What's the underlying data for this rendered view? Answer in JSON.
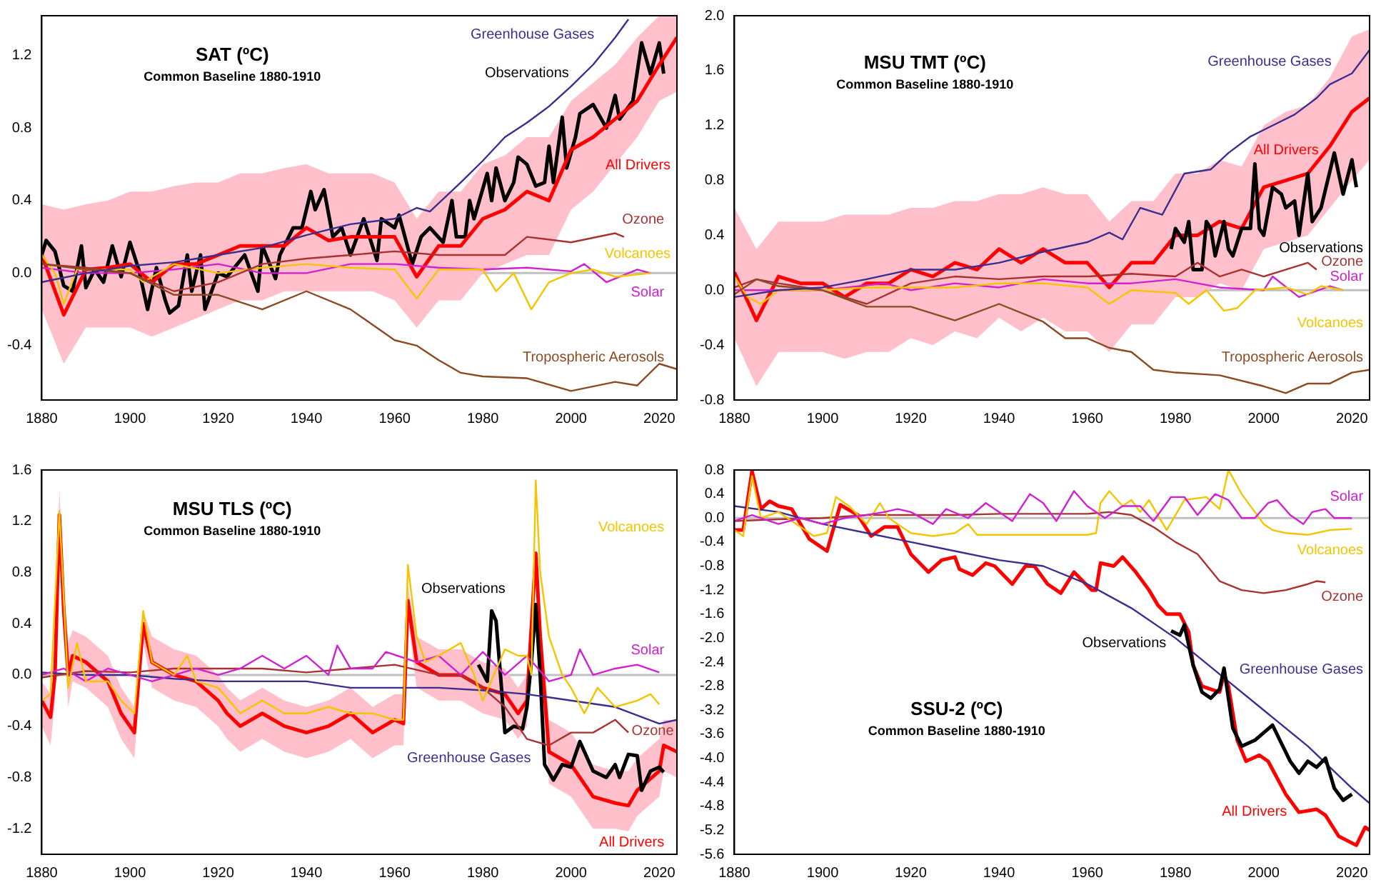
{
  "chart_data": [
    {
      "type": "line",
      "title": "SAT (ºC)",
      "subtitle": "Common Baseline 1880-1910",
      "xlim": [
        1880,
        2024
      ],
      "xticks": [
        1880,
        1900,
        1920,
        1940,
        1960,
        1980,
        2000,
        2020
      ],
      "ylim": [
        -0.7,
        1.42
      ],
      "yticks": [
        -0.4,
        {
          "value": 0,
          "label": "0.0"
        },
        0.4,
        0.8,
        1.2
      ],
      "grid": false,
      "legend": false,
      "marker": "none",
      "ref_lines": [
        {
          "axis": "y",
          "value": 0,
          "color": "#c0c0c0"
        }
      ],
      "series": [
        {
          "name": "Greenhouse Gases",
          "color": "#3b2e8f",
          "x": [
            1880,
            1890,
            1900,
            1910,
            1920,
            1930,
            1940,
            1950,
            1960,
            1965,
            1968,
            1975,
            1980,
            1985,
            1990,
            1995,
            2000,
            2005,
            2010,
            2013
          ],
          "values": [
            -0.05,
            0,
            0.04,
            0.06,
            0.1,
            0.14,
            0.21,
            0.27,
            0.3,
            0.36,
            0.34,
            0.5,
            0.62,
            0.75,
            0.83,
            0.92,
            1.03,
            1.15,
            1.3,
            1.4
          ]
        },
        {
          "name": "Tropospheric Aerosols",
          "color": "#8b4a22",
          "x": [
            1880,
            1890,
            1900,
            1910,
            1920,
            1930,
            1940,
            1950,
            1960,
            1965,
            1970,
            1975,
            1980,
            1990,
            2000,
            2010,
            2015,
            2020,
            2024
          ],
          "values": [
            0.05,
            0.02,
            0,
            -0.12,
            -0.12,
            -0.2,
            -0.1,
            -0.2,
            -0.37,
            -0.4,
            -0.48,
            -0.55,
            -0.57,
            -0.58,
            -0.65,
            -0.6,
            -0.62,
            -0.5,
            -0.53
          ]
        },
        {
          "name": "Ozone",
          "color": "#a83232",
          "x": [
            1880,
            1890,
            1900,
            1910,
            1920,
            1930,
            1940,
            1950,
            1960,
            1970,
            1980,
            1985,
            1990,
            2000,
            2010,
            2012
          ],
          "values": [
            0.05,
            0.03,
            0,
            -0.1,
            -0.05,
            0.05,
            0.08,
            0.1,
            0.12,
            0.1,
            0.1,
            0.1,
            0.2,
            0.17,
            0.22,
            0.2
          ]
        },
        {
          "name": "Volcanoes",
          "color": "#f5c400",
          "x": [
            1880,
            1883,
            1885,
            1888,
            1900,
            1903,
            1910,
            1920,
            1930,
            1940,
            1950,
            1960,
            1965,
            1970,
            1980,
            1983,
            1987,
            1991,
            1995,
            2000,
            2005,
            2010,
            2018
          ],
          "values": [
            0.1,
            0,
            -0.17,
            0.02,
            0.02,
            -0.05,
            0.05,
            0,
            0.03,
            0.05,
            0.03,
            0.02,
            -0.14,
            0.02,
            0.02,
            -0.1,
            0,
            -0.2,
            -0.05,
            0,
            0.02,
            -0.02,
            0
          ]
        },
        {
          "name": "Solar",
          "color": "#d020d0",
          "x": [
            1880,
            1890,
            1900,
            1910,
            1920,
            1930,
            1940,
            1950,
            1960,
            1970,
            1980,
            1990,
            2000,
            2003,
            2008,
            2015,
            2018
          ],
          "values": [
            0.03,
            0,
            0,
            0.02,
            0.05,
            0,
            0,
            0.05,
            0.05,
            0.03,
            0.02,
            0.03,
            0.01,
            0.05,
            -0.05,
            0.02,
            0
          ]
        },
        {
          "name": "All Drivers",
          "color": "#ff0000",
          "x": [
            1880,
            1885,
            1890,
            1895,
            1900,
            1905,
            1910,
            1915,
            1920,
            1925,
            1930,
            1935,
            1940,
            1945,
            1950,
            1955,
            1960,
            1965,
            1970,
            1975,
            1980,
            1985,
            1990,
            1995,
            2000,
            2005,
            2010,
            2015,
            2020,
            2024
          ],
          "values": [
            0.1,
            -0.23,
            0.02,
            0.03,
            0.05,
            -0.05,
            0.05,
            0.05,
            0.1,
            0.15,
            0.15,
            0.15,
            0.25,
            0.18,
            0.2,
            0.2,
            0.2,
            -0.02,
            0.15,
            0.15,
            0.3,
            0.35,
            0.45,
            0.4,
            0.68,
            0.75,
            0.85,
            0.95,
            1.15,
            1.3
          ],
          "upper": [
            0.38,
            0.35,
            0.38,
            0.4,
            0.45,
            0.45,
            0.48,
            0.5,
            0.5,
            0.55,
            0.55,
            0.58,
            0.6,
            0.55,
            0.55,
            0.55,
            0.5,
            0.3,
            0.45,
            0.45,
            0.6,
            0.65,
            0.75,
            0.75,
            0.95,
            1.05,
            1.15,
            1.3,
            1.42,
            1.42
          ],
          "lower": [
            -0.2,
            -0.5,
            -0.3,
            -0.3,
            -0.3,
            -0.35,
            -0.3,
            -0.25,
            -0.2,
            -0.15,
            -0.15,
            -0.1,
            -0.1,
            -0.1,
            -0.1,
            -0.1,
            -0.15,
            -0.3,
            -0.15,
            -0.15,
            0,
            0.05,
            0.1,
            0.1,
            0.35,
            0.45,
            0.6,
            0.75,
            0.95,
            1.0
          ]
        },
        {
          "name": "Observations",
          "color": "#000000",
          "x": [
            1880,
            1881,
            1883,
            1885,
            1887,
            1889,
            1890,
            1892,
            1894,
            1896,
            1898,
            1900,
            1902,
            1904,
            1906,
            1908,
            1909,
            1911,
            1913,
            1914,
            1916,
            1917,
            1920,
            1922,
            1926,
            1929,
            1930,
            1933,
            1934,
            1937,
            1939,
            1941,
            1942,
            1944,
            1946,
            1948,
            1950,
            1953,
            1956,
            1957,
            1960,
            1961,
            1964,
            1966,
            1968,
            1971,
            1973,
            1974,
            1976,
            1977,
            1978,
            1981,
            1982,
            1983,
            1985,
            1987,
            1988,
            1990,
            1992,
            1994,
            1995,
            1996,
            1998,
            1999,
            2001,
            2002,
            2005,
            2008,
            2010,
            2011,
            2014,
            2016,
            2018,
            2020,
            2021
          ],
          "values": [
            0.1,
            0.18,
            0.12,
            -0.07,
            -0.1,
            0.15,
            -0.08,
            0.02,
            -0.05,
            0.15,
            -0.02,
            0.17,
            0.02,
            -0.2,
            0.03,
            -0.15,
            -0.22,
            -0.18,
            0.1,
            -0.1,
            0.1,
            -0.2,
            0,
            -0.02,
            0.1,
            -0.1,
            0.15,
            -0.03,
            0.1,
            0.25,
            0.25,
            0.45,
            0.35,
            0.46,
            0.2,
            0.25,
            0.1,
            0.3,
            0.07,
            0.3,
            0.25,
            0.32,
            0.05,
            0.2,
            0.25,
            0.17,
            0.4,
            0.2,
            0.2,
            0.4,
            0.3,
            0.55,
            0.4,
            0.58,
            0.4,
            0.5,
            0.64,
            0.6,
            0.48,
            0.5,
            0.7,
            0.5,
            0.86,
            0.58,
            0.75,
            0.88,
            0.93,
            0.8,
            0.98,
            0.85,
            0.95,
            1.27,
            1.1,
            1.27,
            1.1
          ]
        }
      ]
    },
    {
      "type": "line",
      "title": "MSU TMT (ºC)",
      "subtitle": "Common Baseline 1880-1910",
      "xlim": [
        1880,
        2024
      ],
      "xticks": [
        1880,
        1900,
        1920,
        1940,
        1960,
        1980,
        2000,
        2020
      ],
      "ylim": [
        -0.8,
        2.0
      ],
      "yticks": [
        -0.8,
        -0.4,
        {
          "value": 0,
          "label": "0.0"
        },
        0.4,
        0.8,
        1.2,
        1.6,
        {
          "value": 2,
          "label": "2.0"
        }
      ],
      "grid": false,
      "legend": false,
      "marker": "none",
      "ref_lines": [
        {
          "axis": "y",
          "value": 0,
          "color": "#c0c0c0"
        }
      ],
      "series": [
        {
          "name": "Greenhouse Gases",
          "color": "#3b2e8f",
          "x": [
            1880,
            1890,
            1900,
            1910,
            1920,
            1930,
            1940,
            1950,
            1960,
            1965,
            1968,
            1972,
            1977,
            1982,
            1988,
            1992,
            1997,
            2002,
            2007,
            2012,
            2015,
            2020,
            2024
          ],
          "values": [
            -0.05,
            0,
            0.02,
            0.08,
            0.15,
            0.15,
            0.2,
            0.28,
            0.35,
            0.42,
            0.37,
            0.6,
            0.55,
            0.85,
            0.88,
            1.0,
            1.12,
            1.2,
            1.28,
            1.4,
            1.5,
            1.58,
            1.75
          ]
        },
        {
          "name": "Tropospheric Aerosols",
          "color": "#8b4a22",
          "x": [
            1880,
            1885,
            1890,
            1900,
            1910,
            1920,
            1930,
            1940,
            1950,
            1955,
            1960,
            1965,
            1970,
            1975,
            1980,
            1990,
            2000,
            2005,
            2010,
            2015,
            2020,
            2024
          ],
          "values": [
            -0.03,
            0.08,
            0.03,
            0,
            -0.12,
            -0.12,
            -0.22,
            -0.1,
            -0.23,
            -0.35,
            -0.35,
            -0.42,
            -0.45,
            -0.58,
            -0.6,
            -0.62,
            -0.7,
            -0.75,
            -0.68,
            -0.68,
            -0.6,
            -0.58
          ]
        },
        {
          "name": "Volcanoes",
          "color": "#f5c400",
          "x": [
            1880,
            1883,
            1886,
            1890,
            1900,
            1910,
            1920,
            1930,
            1940,
            1950,
            1960,
            1965,
            1970,
            1980,
            1983,
            1987,
            1991,
            1994,
            1998,
            2005,
            2010,
            2013,
            2018
          ],
          "values": [
            0.1,
            -0.05,
            -0.1,
            0,
            0,
            0.02,
            0.02,
            0.02,
            0.05,
            0.05,
            0.02,
            -0.1,
            0,
            -0.02,
            -0.1,
            0,
            -0.15,
            -0.13,
            0,
            0.02,
            -0.03,
            0.03,
            0
          ]
        },
        {
          "name": "Solar",
          "color": "#d020d0",
          "x": [
            1880,
            1890,
            1900,
            1914,
            1920,
            1930,
            1940,
            1950,
            1960,
            1970,
            1980,
            1990,
            2000,
            2002,
            2008,
            2015,
            2018
          ],
          "values": [
            0,
            0,
            0,
            0.05,
            0,
            0.05,
            0.02,
            0.08,
            0.05,
            0.05,
            0.08,
            0.02,
            0,
            0.1,
            -0.05,
            0.03,
            0
          ]
        },
        {
          "name": "Ozone",
          "color": "#a83232",
          "x": [
            1880,
            1885,
            1890,
            1900,
            1910,
            1920,
            1930,
            1940,
            1950,
            1960,
            1970,
            1980,
            1985,
            1990,
            1995,
            2000,
            2010,
            2012
          ],
          "values": [
            0.02,
            0.08,
            0.05,
            0,
            -0.1,
            0.05,
            0.1,
            0.08,
            0.1,
            0.1,
            0.12,
            0.1,
            0.2,
            0.1,
            0.15,
            0.1,
            0.2,
            0.15
          ]
        },
        {
          "name": "Observations",
          "color": "#000000",
          "x": [
            1979,
            1980,
            1982,
            1983,
            1984,
            1986,
            1987,
            1988,
            1989,
            1991,
            1992,
            1993,
            1995,
            1997,
            1998,
            1999,
            2000,
            2002,
            2004,
            2005,
            2007,
            2008,
            2010,
            2011,
            2013,
            2016,
            2018,
            2020,
            2021
          ],
          "values": [
            0.3,
            0.45,
            0.35,
            0.5,
            0.15,
            0.15,
            0.5,
            0.45,
            0.25,
            0.5,
            0.3,
            0.25,
            0.45,
            0.45,
            0.92,
            0.45,
            0.4,
            0.75,
            0.7,
            0.6,
            0.65,
            0.4,
            0.85,
            0.5,
            0.6,
            1.0,
            0.7,
            0.95,
            0.75
          ]
        },
        {
          "name": "All Drivers",
          "color": "#ff0000",
          "x": [
            1880,
            1885,
            1890,
            1895,
            1900,
            1905,
            1910,
            1915,
            1920,
            1925,
            1930,
            1935,
            1940,
            1945,
            1950,
            1955,
            1960,
            1965,
            1970,
            1975,
            1980,
            1985,
            1990,
            1995,
            2000,
            2005,
            2010,
            2015,
            2020,
            2024
          ],
          "values": [
            0.13,
            -0.22,
            0.1,
            0.05,
            0.05,
            -0.05,
            0.05,
            0.05,
            0.15,
            0.1,
            0.2,
            0.15,
            0.3,
            0.2,
            0.3,
            0.2,
            0.2,
            0.02,
            0.2,
            0.2,
            0.4,
            0.4,
            0.5,
            0.45,
            0.75,
            0.8,
            0.85,
            1.05,
            1.3,
            1.4
          ],
          "upper": [
            0.6,
            0.3,
            0.5,
            0.5,
            0.5,
            0.55,
            0.55,
            0.55,
            0.6,
            0.6,
            0.65,
            0.65,
            0.7,
            0.7,
            0.75,
            0.7,
            0.7,
            0.5,
            0.65,
            0.65,
            0.85,
            0.85,
            0.95,
            0.9,
            1.2,
            1.3,
            1.35,
            1.55,
            1.85,
            1.9
          ],
          "lower": [
            -0.35,
            -0.7,
            -0.45,
            -0.45,
            -0.45,
            -0.5,
            -0.45,
            -0.45,
            -0.35,
            -0.4,
            -0.3,
            -0.35,
            -0.2,
            -0.3,
            -0.2,
            -0.3,
            -0.3,
            -0.45,
            -0.25,
            -0.25,
            -0.05,
            -0.05,
            0.05,
            0,
            0.3,
            0.35,
            0.4,
            0.6,
            0.8,
            0.95
          ]
        }
      ]
    },
    {
      "type": "line",
      "title": "MSU TLS (ºC)",
      "subtitle": "Common Baseline 1880-1910",
      "xlim": [
        1880,
        2024
      ],
      "xticks": [
        1880,
        1900,
        1920,
        1940,
        1960,
        1980,
        2000,
        2020
      ],
      "ylim": [
        -1.4,
        1.6
      ],
      "yticks": [
        -1.2,
        -0.8,
        -0.4,
        {
          "value": 0,
          "label": "0.0"
        },
        0.4,
        0.8,
        1.2,
        1.6
      ],
      "grid": false,
      "legend": false,
      "marker": "none",
      "ref_lines": [
        {
          "axis": "y",
          "value": 0,
          "color": "#c0c0c0"
        }
      ],
      "series": [
        {
          "name": "Volcanoes",
          "color": "#f5c400",
          "x": [
            1880,
            1882,
            1884,
            1886,
            1888,
            1890,
            1895,
            1898,
            1901,
            1903,
            1905,
            1910,
            1913,
            1915,
            1920,
            1925,
            1930,
            1935,
            1940,
            1945,
            1950,
            1955,
            1960,
            1962,
            1963,
            1965,
            1967,
            1970,
            1975,
            1978,
            1980,
            1985,
            1988,
            1990,
            1991,
            1992,
            1993,
            1995,
            1998,
            2000,
            2003,
            2006,
            2010,
            2015,
            2018,
            2020
          ],
          "values": [
            -0.2,
            -0.15,
            1.28,
            -0.1,
            0.25,
            -0.05,
            -0.05,
            -0.2,
            -0.3,
            0.5,
            0.1,
            0,
            0.15,
            -0.05,
            -0.1,
            -0.3,
            -0.2,
            -0.3,
            -0.3,
            -0.25,
            -0.3,
            -0.3,
            -0.35,
            -0.35,
            0.86,
            0.3,
            0.1,
            0.15,
            0.25,
            0,
            -0.2,
            0.2,
            0.15,
            0.15,
            0,
            1.52,
            0.8,
            0.3,
            0,
            -0.1,
            -0.3,
            -0.1,
            -0.25,
            -0.2,
            -0.15,
            -0.23
          ]
        },
        {
          "name": "Solar",
          "color": "#d020d0",
          "x": [
            1880,
            1885,
            1890,
            1895,
            1900,
            1905,
            1910,
            1915,
            1920,
            1925,
            1930,
            1935,
            1940,
            1945,
            1947,
            1950,
            1955,
            1958,
            1965,
            1970,
            1975,
            1980,
            1985,
            1990,
            1995,
            2000,
            2002,
            2005,
            2010,
            2015,
            2020
          ],
          "values": [
            0,
            0.05,
            -0.05,
            0.05,
            0,
            -0.05,
            0,
            0.05,
            0,
            0.05,
            0.15,
            0.05,
            0.15,
            0,
            0.23,
            0.05,
            0.05,
            0.18,
            0.1,
            0.15,
            0,
            0.18,
            0,
            0.15,
            -0.05,
            0,
            0.2,
            0,
            0.05,
            0.08,
            0.02
          ]
        },
        {
          "name": "Ozone",
          "color": "#a83232",
          "x": [
            1880,
            1890,
            1900,
            1910,
            1920,
            1930,
            1940,
            1950,
            1960,
            1970,
            1975,
            1980,
            1985,
            1990,
            1995,
            2000,
            2005,
            2010,
            2013
          ],
          "values": [
            -0.02,
            0.03,
            0.02,
            0.05,
            0.05,
            0.05,
            0.02,
            0.05,
            0.08,
            0,
            0,
            -0.1,
            -0.25,
            -0.5,
            -0.55,
            -0.45,
            -0.45,
            -0.35,
            -0.45
          ]
        },
        {
          "name": "Greenhouse Gases",
          "color": "#3b2e8f",
          "x": [
            1880,
            1890,
            1900,
            1910,
            1920,
            1930,
            1940,
            1950,
            1960,
            1970,
            1980,
            1990,
            2000,
            2010,
            2020,
            2024
          ],
          "values": [
            0.02,
            0,
            0,
            -0.03,
            -0.05,
            -0.05,
            -0.05,
            -0.1,
            -0.1,
            -0.1,
            -0.12,
            -0.15,
            -0.2,
            -0.25,
            -0.38,
            -0.35
          ]
        },
        {
          "name": "Observations",
          "color": "#000000",
          "x": [
            1979,
            1981,
            1982,
            1983,
            1984,
            1985,
            1987,
            1989,
            1990,
            1991,
            1992,
            1993,
            1994,
            1996,
            1998,
            2000,
            2002,
            2005,
            2008,
            2010,
            2011,
            2013,
            2015,
            2016,
            2018,
            2020,
            2021
          ],
          "values": [
            0.08,
            -0.05,
            0.5,
            0.42,
            0,
            -0.45,
            -0.4,
            -0.42,
            -0.25,
            0.1,
            0.55,
            0,
            -0.7,
            -0.82,
            -0.7,
            -0.72,
            -0.52,
            -0.75,
            -0.8,
            -0.7,
            -0.8,
            -0.62,
            -0.63,
            -0.9,
            -0.75,
            -0.72,
            -0.76
          ]
        },
        {
          "name": "All Drivers",
          "color": "#ff0000",
          "x": [
            1880,
            1882,
            1883,
            1884,
            1885,
            1886,
            1887,
            1890,
            1895,
            1898,
            1901,
            1903,
            1905,
            1910,
            1915,
            1920,
            1922,
            1925,
            1930,
            1935,
            1940,
            1945,
            1950,
            1955,
            1960,
            1962,
            1963,
            1965,
            1970,
            1975,
            1980,
            1985,
            1988,
            1990,
            1992,
            1993,
            1995,
            2000,
            2005,
            2010,
            2013,
            2015,
            2020,
            2021,
            2024
          ],
          "values": [
            -0.2,
            -0.33,
            0,
            1.25,
            0.5,
            0,
            0.15,
            0.1,
            -0.05,
            -0.3,
            -0.45,
            0.4,
            0.1,
            0,
            -0.05,
            -0.2,
            -0.3,
            -0.4,
            -0.3,
            -0.4,
            -0.45,
            -0.4,
            -0.3,
            -0.45,
            -0.35,
            -0.38,
            0.58,
            0.1,
            0,
            0,
            -0.1,
            -0.15,
            -0.3,
            -0.2,
            0.95,
            0.3,
            -0.6,
            -0.7,
            -0.95,
            -1.0,
            -1.02,
            -0.9,
            -0.75,
            -0.55,
            -0.6
          ],
          "upper": [
            -0.05,
            -0.15,
            0.2,
            1.45,
            0.7,
            0.25,
            0.35,
            0.3,
            0.15,
            -0.1,
            -0.25,
            0.5,
            0.3,
            0.2,
            0.15,
            0,
            -0.1,
            -0.2,
            -0.1,
            -0.2,
            -0.25,
            -0.2,
            -0.1,
            -0.25,
            -0.15,
            -0.15,
            0.7,
            0.3,
            0.2,
            0.2,
            0.1,
            0.05,
            -0.1,
            0,
            1.0,
            0.5,
            -0.35,
            -0.45,
            -0.7,
            -0.75,
            -0.75,
            -0.65,
            -0.5,
            -0.35,
            -0.35
          ],
          "lower": [
            -0.4,
            -0.55,
            -0.2,
            1.05,
            0.3,
            -0.25,
            -0.05,
            -0.1,
            -0.25,
            -0.5,
            -0.65,
            0.25,
            -0.1,
            -0.2,
            -0.25,
            -0.4,
            -0.5,
            -0.6,
            -0.5,
            -0.6,
            -0.65,
            -0.6,
            -0.5,
            -0.65,
            -0.55,
            -0.55,
            0.45,
            -0.1,
            -0.2,
            -0.2,
            -0.3,
            -0.35,
            -0.5,
            -0.4,
            0.9,
            0.1,
            -0.85,
            -0.95,
            -1.2,
            -1.2,
            -1.22,
            -1.1,
            -0.95,
            -0.75,
            -0.8
          ]
        }
      ]
    },
    {
      "type": "line",
      "title": "SSU-2 (ºC)",
      "subtitle": "Common Baseline 1880-1910",
      "xlim": [
        1880,
        2024
      ],
      "xticks": [
        1880,
        1900,
        1920,
        1940,
        1960,
        1980,
        2000,
        2020
      ],
      "ylim": [
        -5.6,
        0.8
      ],
      "yticks": [
        -5.6,
        -5.2,
        -4.8,
        -4.4,
        {
          "value": -4,
          "label": "-4.0"
        },
        -3.6,
        -3.2,
        -2.8,
        -2.4,
        {
          "value": -2,
          "label": "-2.0"
        },
        -1.6,
        -1.2,
        -0.8,
        -0.4,
        {
          "value": 0,
          "label": "0.0"
        },
        0.4,
        0.8
      ],
      "grid": false,
      "legend": false,
      "marker": "none",
      "ref_lines": [
        {
          "axis": "y",
          "value": 0,
          "color": "#c0c0c0"
        }
      ],
      "series": [
        {
          "name": "Solar",
          "color": "#d020d0",
          "x": [
            1880,
            1884,
            1890,
            1895,
            1900,
            1905,
            1910,
            1914,
            1917,
            1920,
            1925,
            1928,
            1933,
            1937,
            1940,
            1943,
            1947,
            1950,
            1953,
            1957,
            1960,
            1964,
            1968,
            1972,
            1975,
            1979,
            1982,
            1985,
            1989,
            1992,
            1995,
            1998,
            2001,
            2003,
            2006,
            2009,
            2011,
            2014,
            2016,
            2020
          ],
          "values": [
            -0.05,
            0.05,
            -0.1,
            0,
            -0.1,
            0,
            0.05,
            0.1,
            0.15,
            0.1,
            -0.1,
            0.15,
            0,
            0.25,
            0.1,
            -0.05,
            0.4,
            0.25,
            -0.05,
            0.45,
            0.2,
            0,
            0.2,
            0.2,
            -0.05,
            0.35,
            0.35,
            0.05,
            0.4,
            0.3,
            0,
            0,
            0.25,
            0.3,
            0.05,
            -0.1,
            0.1,
            0.15,
            0,
            0
          ]
        },
        {
          "name": "Volcanoes",
          "color": "#f5c400",
          "x": [
            1880,
            1882,
            1884,
            1886,
            1890,
            1895,
            1898,
            1901,
            1903,
            1906,
            1910,
            1913,
            1915,
            1920,
            1925,
            1930,
            1933,
            1935,
            1950,
            1960,
            1962,
            1963,
            1965,
            1968,
            1970,
            1972,
            1974,
            1978,
            1982,
            1987,
            1990,
            1992,
            1995,
            1998,
            2000,
            2002,
            2005,
            2010,
            2015,
            2020
          ],
          "values": [
            -0.2,
            -0.3,
            0.7,
            0,
            0.1,
            -0.15,
            -0.3,
            -0.25,
            0.35,
            0.2,
            -0.1,
            0.25,
            0,
            -0.25,
            -0.3,
            -0.25,
            -0.1,
            -0.28,
            -0.28,
            -0.28,
            -0.25,
            0.25,
            0.45,
            0.2,
            0.3,
            0.1,
            0.3,
            -0.2,
            0.3,
            0.35,
            0.15,
            0.8,
            0.4,
            0.1,
            -0.1,
            -0.2,
            -0.25,
            -0.28,
            -0.2,
            -0.18
          ]
        },
        {
          "name": "Ozone",
          "color": "#a83232",
          "x": [
            1880,
            1890,
            1900,
            1910,
            1920,
            1930,
            1940,
            1950,
            1960,
            1965,
            1970,
            1975,
            1980,
            1985,
            1990,
            1995,
            2000,
            2005,
            2010,
            2012,
            2014
          ],
          "values": [
            -0.05,
            -0.02,
            0,
            0.05,
            0.05,
            0.05,
            0.07,
            0.07,
            0.07,
            0.1,
            0.05,
            -0.15,
            -0.4,
            -0.6,
            -1.05,
            -1.2,
            -1.25,
            -1.2,
            -1.1,
            -1.05,
            -1.07
          ]
        },
        {
          "name": "Observations",
          "color": "#000000",
          "x": [
            1979,
            1981,
            1982,
            1984,
            1986,
            1988,
            1990,
            1991,
            1993,
            1995,
            1998,
            2002,
            2004,
            2006,
            2008,
            2010,
            2012,
            2014,
            2016,
            2018,
            2020
          ],
          "values": [
            -1.88,
            -1.95,
            -1.78,
            -2.45,
            -2.9,
            -3.0,
            -2.85,
            -2.5,
            -3.5,
            -3.8,
            -3.7,
            -3.45,
            -3.75,
            -4.05,
            -4.25,
            -4.05,
            -4.15,
            -4.0,
            -4.5,
            -4.7,
            -4.6
          ]
        },
        {
          "name": "Greenhouse Gases",
          "color": "#3b2e8f",
          "x": [
            1880,
            1890,
            1900,
            1910,
            1920,
            1930,
            1940,
            1950,
            1960,
            1970,
            1980,
            1990,
            2000,
            2010,
            2020,
            2024
          ],
          "values": [
            0.2,
            0.1,
            -0.1,
            -0.25,
            -0.4,
            -0.55,
            -0.7,
            -0.8,
            -1.1,
            -1.5,
            -2.0,
            -2.6,
            -3.2,
            -3.8,
            -4.5,
            -4.75
          ]
        },
        {
          "name": "All Drivers",
          "color": "#ff0000",
          "x": [
            1880,
            1882,
            1884,
            1886,
            1888,
            1890,
            1893,
            1897,
            1901,
            1904,
            1908,
            1911,
            1914,
            1917,
            1920,
            1924,
            1927,
            1930,
            1931,
            1934,
            1937,
            1939,
            1943,
            1946,
            1948,
            1951,
            1954,
            1957,
            1961,
            1962,
            1963,
            1966,
            1968,
            1971,
            1974,
            1976,
            1978,
            1981,
            1983,
            1984,
            1986,
            1988,
            1990,
            1991,
            1992,
            1994,
            1996,
            1999,
            2001,
            2005,
            2008,
            2012,
            2014,
            2017,
            2021,
            2023,
            2024
          ],
          "values": [
            -0.2,
            -0.2,
            0.78,
            0.15,
            0.28,
            0.2,
            0.15,
            -0.35,
            -0.55,
            0.22,
            0.05,
            -0.3,
            -0.15,
            -0.15,
            -0.6,
            -0.9,
            -0.7,
            -0.65,
            -0.85,
            -0.95,
            -0.75,
            -0.8,
            -1.1,
            -0.8,
            -0.8,
            -1.1,
            -1.25,
            -0.9,
            -1.2,
            -1.2,
            -0.75,
            -0.8,
            -0.65,
            -0.9,
            -1.2,
            -1.45,
            -1.6,
            -1.6,
            -1.9,
            -2.45,
            -2.8,
            -2.85,
            -2.9,
            -2.6,
            -2.8,
            -3.7,
            -4.05,
            -3.95,
            -4.05,
            -4.6,
            -4.9,
            -4.85,
            -4.95,
            -5.3,
            -5.45,
            -5.15,
            -5.2
          ]
        }
      ]
    }
  ]
}
